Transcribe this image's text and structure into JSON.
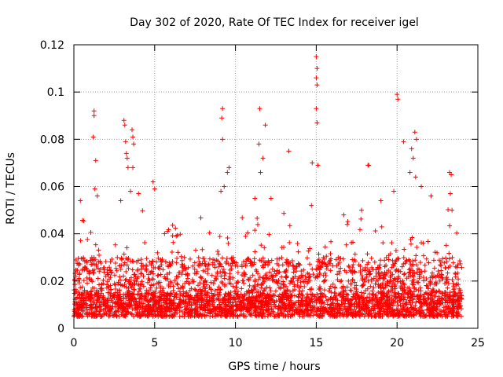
{
  "chart_data": {
    "type": "scatter",
    "title": "Day 302 of 2020, Rate Of TEC Index for receiver igel",
    "xlabel": "GPS time / hours",
    "ylabel": "ROTI / TECUs",
    "xlim": [
      0,
      25
    ],
    "ylim": [
      0,
      0.12
    ],
    "xticks": [
      0,
      5,
      10,
      15,
      20,
      25
    ],
    "xtick_labels": [
      "0",
      "5",
      "10",
      "15",
      "20",
      "25"
    ],
    "yticks": [
      0,
      0.02,
      0.04,
      0.06,
      0.08,
      0.1,
      0.12
    ],
    "ytick_labels": [
      "0",
      "0.02",
      "0.04",
      "0.06",
      "0.08",
      "0.1",
      "0.12"
    ],
    "grid": true,
    "marker": "+",
    "color": "#ff0000",
    "series": [
      {
        "name": "ROTI",
        "note": "dense background cloud of ~0.005-0.03 TECU/s spanning 0-24 h, plus the prominent outliers listed below",
        "x_range": [
          0,
          24
        ],
        "baseline_y_range": [
          0.005,
          0.03
        ],
        "points": [
          [
            1.25,
            0.092
          ],
          [
            1.25,
            0.09
          ],
          [
            1.2,
            0.081
          ],
          [
            1.35,
            0.071
          ],
          [
            3.1,
            0.088
          ],
          [
            3.15,
            0.086
          ],
          [
            3.2,
            0.079
          ],
          [
            3.25,
            0.074
          ],
          [
            3.3,
            0.072
          ],
          [
            3.35,
            0.068
          ],
          [
            3.6,
            0.084
          ],
          [
            3.65,
            0.081
          ],
          [
            3.7,
            0.078
          ],
          [
            3.65,
            0.068
          ],
          [
            9.2,
            0.093
          ],
          [
            9.15,
            0.089
          ],
          [
            9.2,
            0.08
          ],
          [
            9.6,
            0.068
          ],
          [
            9.5,
            0.066
          ],
          [
            11.5,
            0.093
          ],
          [
            11.45,
            0.078
          ],
          [
            11.85,
            0.086
          ],
          [
            11.7,
            0.072
          ],
          [
            11.55,
            0.066
          ],
          [
            13.3,
            0.075
          ],
          [
            15.0,
            0.115
          ],
          [
            15.05,
            0.11
          ],
          [
            15.0,
            0.106
          ],
          [
            15.05,
            0.103
          ],
          [
            15.0,
            0.093
          ],
          [
            15.05,
            0.087
          ],
          [
            14.75,
            0.07
          ],
          [
            15.1,
            0.069
          ],
          [
            18.2,
            0.069
          ],
          [
            18.25,
            0.069
          ],
          [
            20.0,
            0.099
          ],
          [
            20.05,
            0.097
          ],
          [
            20.4,
            0.079
          ],
          [
            21.1,
            0.083
          ],
          [
            21.2,
            0.08
          ],
          [
            20.9,
            0.076
          ],
          [
            21.0,
            0.072
          ],
          [
            20.8,
            0.066
          ],
          [
            21.15,
            0.064
          ],
          [
            23.25,
            0.066
          ],
          [
            23.35,
            0.065
          ],
          [
            23.3,
            0.057
          ],
          [
            0.4,
            0.054
          ],
          [
            1.3,
            0.059
          ],
          [
            1.45,
            0.056
          ],
          [
            2.9,
            0.054
          ],
          [
            3.5,
            0.058
          ],
          [
            4.0,
            0.057
          ],
          [
            4.9,
            0.062
          ],
          [
            5.0,
            0.059
          ],
          [
            9.3,
            0.06
          ],
          [
            9.1,
            0.058
          ],
          [
            11.2,
            0.055
          ],
          [
            12.2,
            0.055
          ],
          [
            14.7,
            0.052
          ],
          [
            16.7,
            0.048
          ],
          [
            17.8,
            0.05
          ],
          [
            19.0,
            0.054
          ],
          [
            19.8,
            0.058
          ],
          [
            21.5,
            0.06
          ],
          [
            22.1,
            0.056
          ],
          [
            23.4,
            0.05
          ]
        ]
      }
    ]
  }
}
